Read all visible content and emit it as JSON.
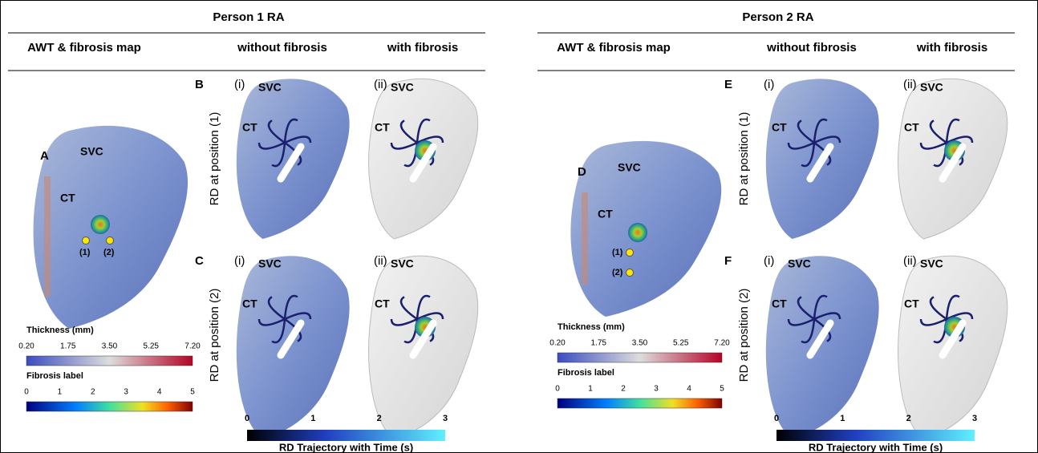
{
  "persons": [
    {
      "title": "Person 1 RA",
      "headers": [
        "AWT & fibrosis map",
        "without fibrosis",
        "with fibrosis"
      ],
      "map": {
        "panel": "A",
        "labels": [
          "SVC",
          "CT"
        ],
        "positions": [
          "(1)",
          "(2)"
        ]
      },
      "rows": [
        {
          "panel": "B",
          "row_label": "RD at position (1)",
          "subpanels": [
            {
              "tag": "(i)",
              "labels": [
                "SVC",
                "CT"
              ]
            },
            {
              "tag": "(ii)",
              "labels": [
                "SVC",
                "CT"
              ]
            }
          ]
        },
        {
          "panel": "C",
          "row_label": "RD at position (2)",
          "subpanels": [
            {
              "tag": "(i)",
              "labels": [
                "SVC",
                "CT"
              ]
            },
            {
              "tag": "(ii)",
              "labels": [
                "SVC",
                "CT"
              ]
            }
          ]
        }
      ],
      "thickness_bar": {
        "title": "Thickness (mm)",
        "ticks": [
          "0.20",
          "1.75",
          "3.50",
          "5.25",
          "7.20"
        ]
      },
      "fibrosis_bar": {
        "title": "Fibrosis label",
        "ticks": [
          "0",
          "1",
          "2",
          "3",
          "4",
          "5"
        ]
      },
      "time_bar": {
        "title": "RD Trajectory with Time (s)",
        "ticks": [
          "0",
          "1",
          "2",
          "3"
        ]
      }
    },
    {
      "title": "Person 2 RA",
      "headers": [
        "AWT & fibrosis map",
        "without fibrosis",
        "with fibrosis"
      ],
      "map": {
        "panel": "D",
        "labels": [
          "SVC",
          "CT"
        ],
        "positions": [
          "(1)",
          "(2)"
        ]
      },
      "rows": [
        {
          "panel": "E",
          "row_label": "RD at position (1)",
          "subpanels": [
            {
              "tag": "(i)",
              "labels": [
                "CT"
              ]
            },
            {
              "tag": "(ii)",
              "labels": [
                "SVC",
                "CT"
              ]
            }
          ]
        },
        {
          "panel": "F",
          "row_label": "RD at position (2)",
          "subpanels": [
            {
              "tag": "(i)",
              "labels": [
                "SVC",
                "CT"
              ]
            },
            {
              "tag": "(ii)",
              "labels": [
                "SVC",
                "CT"
              ]
            }
          ]
        }
      ],
      "thickness_bar": {
        "title": "Thickness (mm)",
        "ticks": [
          "0.20",
          "1.75",
          "3.50",
          "5.25",
          "7.20"
        ]
      },
      "fibrosis_bar": {
        "title": "Fibrosis label",
        "ticks": [
          "0",
          "1",
          "2",
          "3",
          "4",
          "5"
        ]
      },
      "time_bar": {
        "title": "RD Trajectory with Time (s)",
        "ticks": [
          "0",
          "1",
          "2",
          "3"
        ]
      }
    }
  ]
}
